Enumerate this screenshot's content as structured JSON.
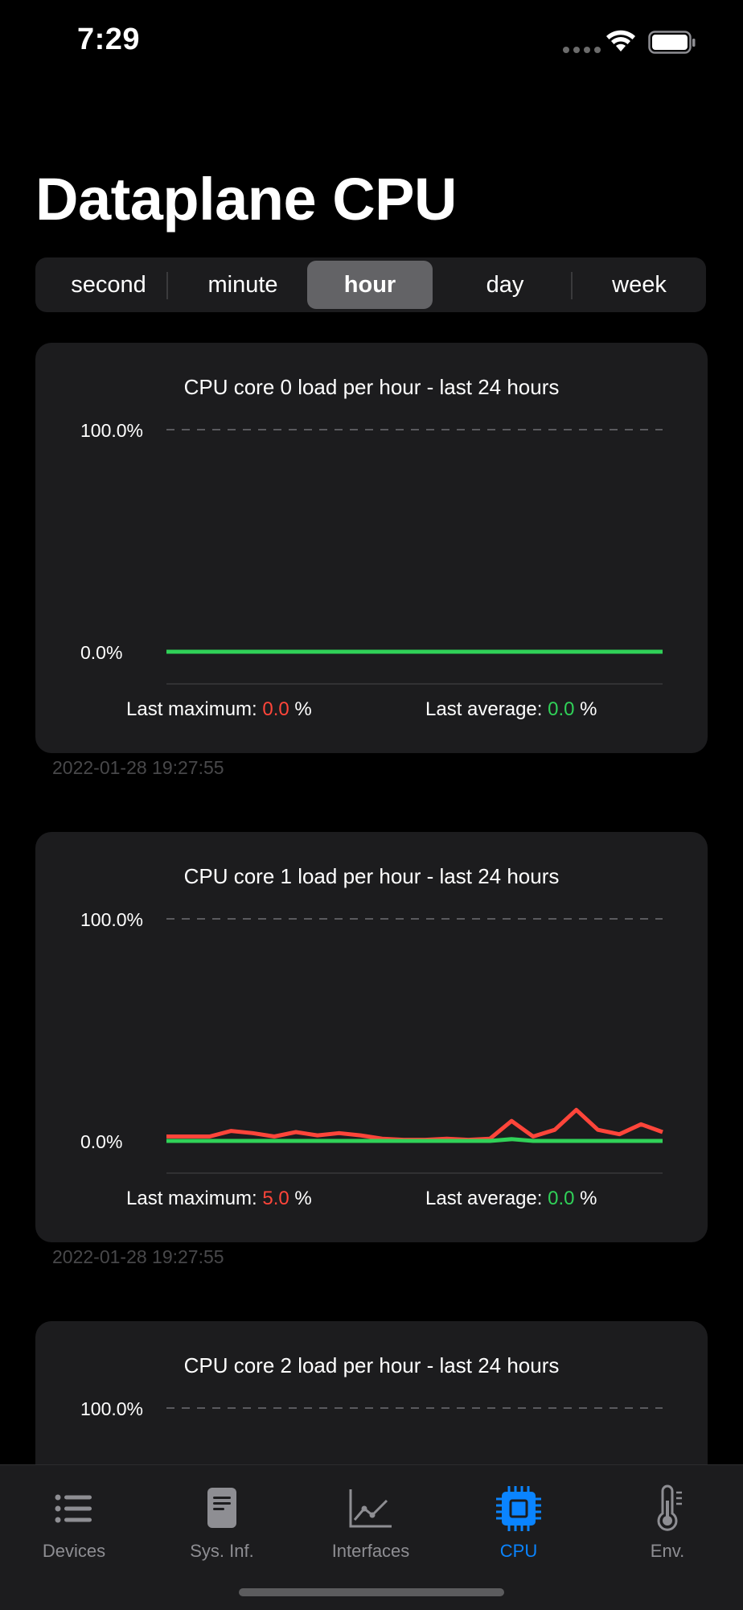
{
  "status_bar": {
    "time": "7:29"
  },
  "page_title": "Dataplane CPU",
  "segments": {
    "items": [
      "second",
      "minute",
      "hour",
      "day",
      "week"
    ],
    "selected": "hour"
  },
  "charts": [
    {
      "title": "CPU core 0 load per hour - last 24 hours",
      "y_top_label": "100.0%",
      "y_bottom_label": "0.0%",
      "last_max_label": "Last maximum:",
      "last_max_value": "0.0",
      "last_avg_label": "Last average:",
      "last_avg_value": "0.0",
      "unit": "%",
      "timestamp": "2022-01-28 19:27:55"
    },
    {
      "title": "CPU core 1 load per hour - last 24 hours",
      "y_top_label": "100.0%",
      "y_bottom_label": "0.0%",
      "last_max_label": "Last maximum:",
      "last_max_value": "5.0",
      "last_avg_label": "Last average:",
      "last_avg_value": "0.0",
      "unit": "%",
      "timestamp": "2022-01-28 19:27:55"
    },
    {
      "title": "CPU core 2 load per hour - last 24 hours",
      "y_top_label": "100.0%"
    }
  ],
  "chart_data": [
    {
      "type": "line",
      "title": "CPU core 0 load per hour - last 24 hours",
      "ylim": [
        0,
        100
      ],
      "y_ticks": [
        "0.0%",
        "100.0%"
      ],
      "series": [
        {
          "name": "",
          "color": "#30d158",
          "values": [
            0,
            0,
            0,
            0,
            0,
            0,
            0,
            0,
            0,
            0,
            0,
            0,
            0,
            0,
            0,
            0,
            0,
            0,
            0,
            0,
            0,
            0,
            0,
            0
          ]
        }
      ]
    },
    {
      "type": "line",
      "title": "CPU core 1 load per hour - last 24 hours",
      "ylim": [
        0,
        100
      ],
      "y_ticks": [
        "0.0%",
        "100.0%"
      ],
      "series": [
        {
          "name": "",
          "color": "#ff453a",
          "values": [
            2,
            2,
            2,
            4.5,
            3.5,
            2,
            4,
            2.5,
            3.5,
            2.5,
            1,
            0.5,
            0.5,
            1,
            0.5,
            1,
            9,
            2,
            5,
            14,
            5,
            3,
            7.5,
            4
          ]
        },
        {
          "name": "",
          "color": "#30d158",
          "values": [
            0,
            0,
            0,
            0,
            0,
            0,
            0,
            0,
            0,
            0,
            0,
            0,
            0,
            0,
            0,
            0,
            0.8,
            0,
            0,
            0,
            0,
            0,
            0,
            0
          ]
        }
      ]
    }
  ],
  "tab_bar": {
    "items": [
      {
        "label": "Devices",
        "icon": "list-icon"
      },
      {
        "label": "Sys. Inf.",
        "icon": "document-icon"
      },
      {
        "label": "Interfaces",
        "icon": "line-chart-icon"
      },
      {
        "label": "CPU",
        "icon": "cpu-chip-icon"
      },
      {
        "label": "Env.",
        "icon": "thermometer-icon"
      }
    ],
    "selected": "CPU",
    "colors": {
      "active": "#0a84ff",
      "inactive": "#8e8e93"
    }
  }
}
